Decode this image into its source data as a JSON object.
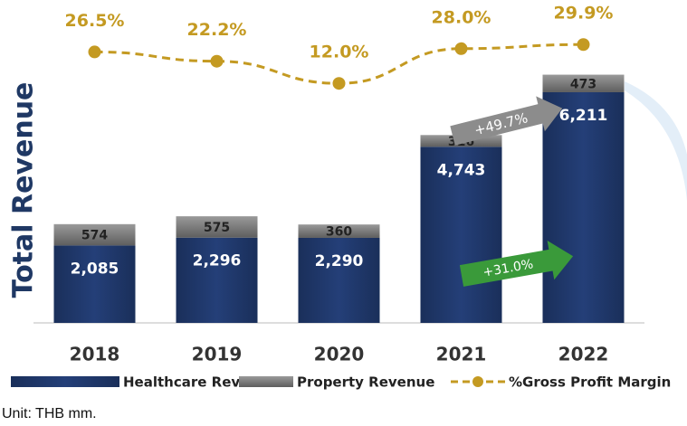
{
  "chart_data": {
    "type": "stacked_bar_line",
    "y_axis_label": "Total Revenue",
    "categories": [
      "2018",
      "2019",
      "2020",
      "2021",
      "2022"
    ],
    "series": [
      {
        "name": "Healthcare Revenue",
        "color": "#1f3864",
        "values": [
          2085,
          2296,
          2290,
          4743,
          6211
        ],
        "value_labels": [
          "2,085",
          "2,296",
          "2,290",
          "4,743",
          "6,211"
        ]
      },
      {
        "name": "Property Revenue",
        "color": "#7f7f7f",
        "values": [
          574,
          575,
          360,
          316,
          473
        ]
      },
      {
        "name": "%Gross Profit Margin",
        "color": "#c49a22",
        "axis": "y2",
        "values": [
          26.5,
          22.2,
          12.0,
          28.0,
          29.9
        ],
        "value_labels": [
          "26.5%",
          "22.2%",
          "12.0%",
          "28.0%",
          "29.9%"
        ]
      }
    ],
    "ylim": [
      0,
      8500
    ],
    "y2lim": [
      0,
      40
    ],
    "annotations": [
      "+49.7%",
      "+31.0%"
    ],
    "footnote": "Unit: THB mm."
  }
}
